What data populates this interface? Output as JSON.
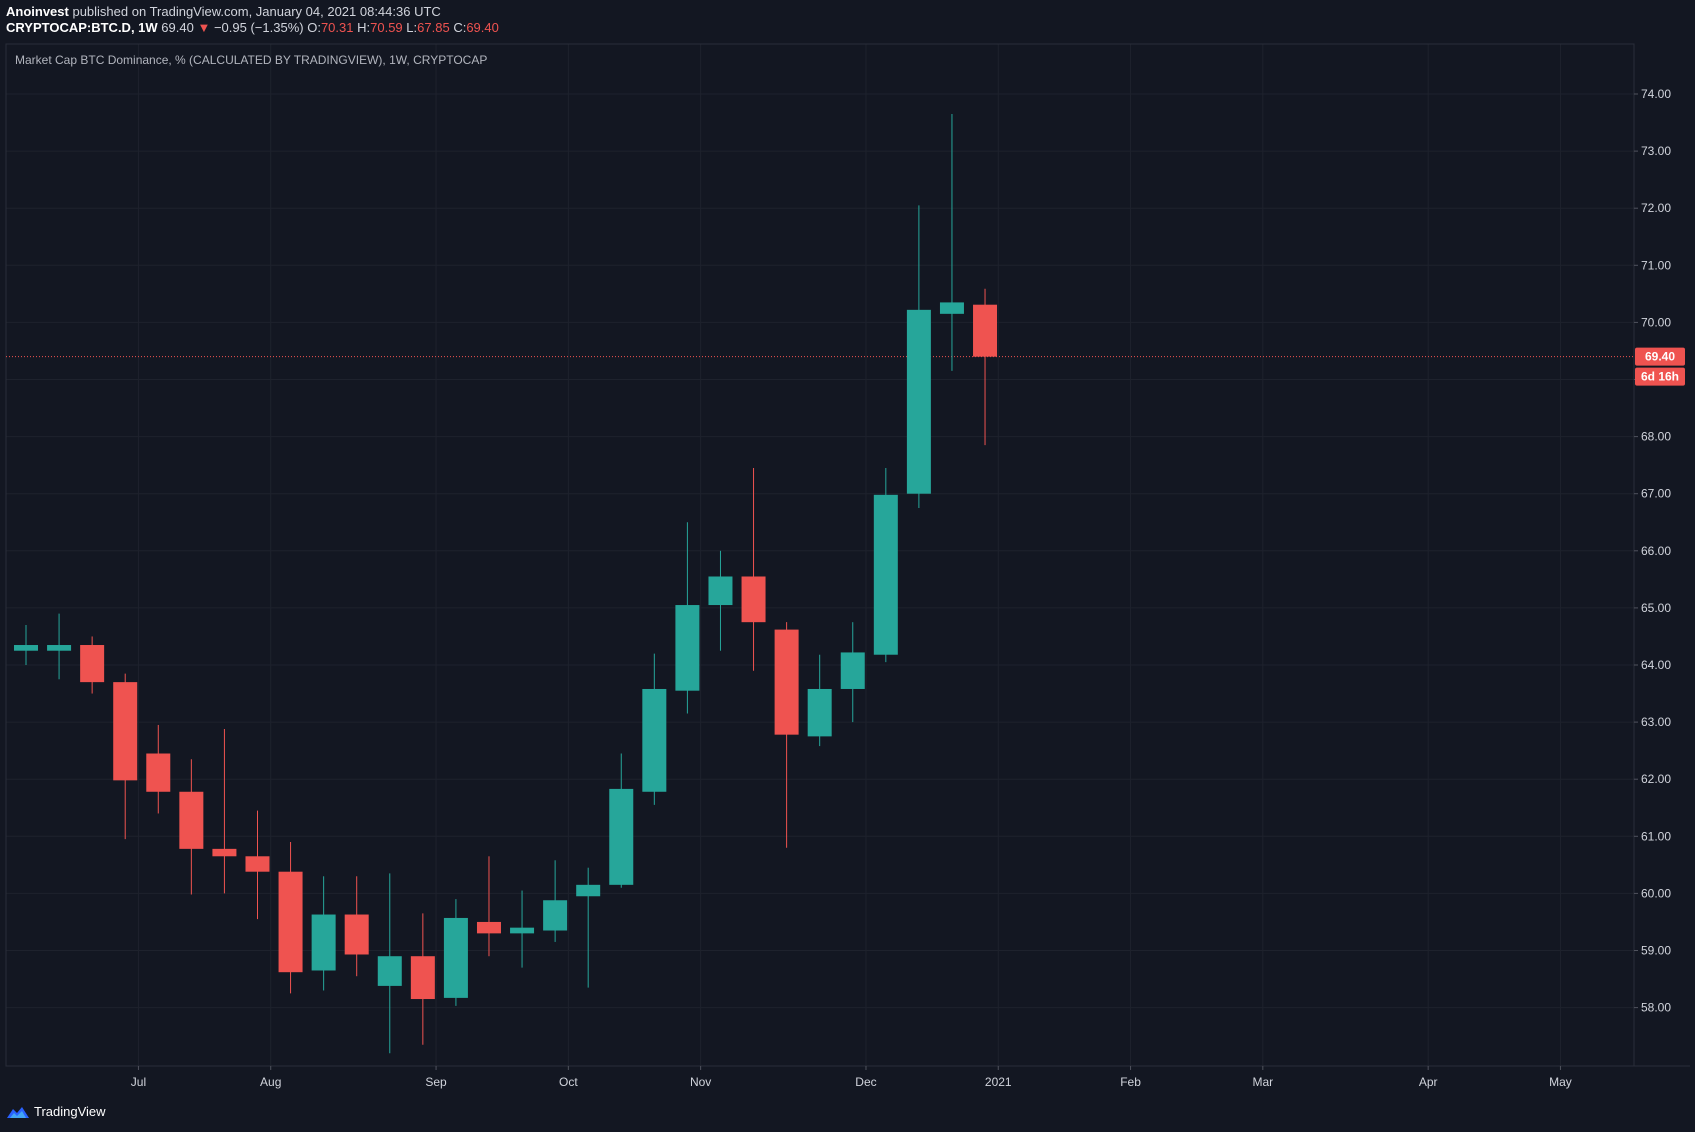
{
  "header": {
    "author": "Anoinvest",
    "published": "published on TradingView.com, January 04, 2021 08:44:36 UTC",
    "symbol": "CRYPTOCAP:BTC.D, 1W",
    "last": "69.40",
    "change_arrow": "▼",
    "change": "−0.95 (−1.35%)",
    "o_label": "O:",
    "o_value": "70.31",
    "h_label": "H:",
    "h_value": "70.59",
    "l_label": "L:",
    "l_value": "67.85",
    "c_label": "C:",
    "c_value": "69.40"
  },
  "legend_title": "Market Cap BTC Dominance, % (CALCULATED BY TRADINGVIEW), 1W, CRYPTOCAP",
  "price_label": "69.40",
  "countdown_label": "6d 16h",
  "footer": {
    "brand": "TradingView",
    "logo_icon": "tradingview-logo-icon"
  },
  "colors": {
    "background": "#131722",
    "up": "#26a69a",
    "down": "#ef5350",
    "grid": "#1e222d",
    "text": "#d1d4dc"
  },
  "chart_data": {
    "type": "candlestick",
    "interval": "1W",
    "ylim": [
      57.1,
      74.8
    ],
    "y_ticks": [
      "58.00",
      "59.00",
      "60.00",
      "61.00",
      "62.00",
      "63.00",
      "64.00",
      "65.00",
      "66.00",
      "67.00",
      "68.00",
      "69.00",
      "70.00",
      "71.00",
      "72.00",
      "73.00",
      "74.00"
    ],
    "x_ticks": [
      {
        "label": "Jul",
        "index": 3.4
      },
      {
        "label": "Aug",
        "index": 7.4
      },
      {
        "label": "Sep",
        "index": 12.4
      },
      {
        "label": "Oct",
        "index": 16.4
      },
      {
        "label": "Nov",
        "index": 20.4
      },
      {
        "label": "Dec",
        "index": 25.4
      },
      {
        "label": "2021",
        "index": 29.4
      },
      {
        "label": "Feb",
        "index": 33.4
      },
      {
        "label": "Mar",
        "index": 37.4
      },
      {
        "label": "Apr",
        "index": 42.4
      },
      {
        "label": "May",
        "index": 46.4
      }
    ],
    "candles": [
      {
        "o": 64.25,
        "h": 64.7,
        "l": 64.0,
        "c": 64.35
      },
      {
        "o": 64.25,
        "h": 64.9,
        "l": 63.75,
        "c": 64.35
      },
      {
        "o": 64.35,
        "h": 64.5,
        "l": 63.5,
        "c": 63.7
      },
      {
        "o": 63.7,
        "h": 63.85,
        "l": 60.95,
        "c": 61.98
      },
      {
        "o": 62.45,
        "h": 62.95,
        "l": 61.4,
        "c": 61.78
      },
      {
        "o": 61.78,
        "h": 62.35,
        "l": 59.98,
        "c": 60.78
      },
      {
        "o": 60.78,
        "h": 62.88,
        "l": 60.0,
        "c": 60.65
      },
      {
        "o": 60.65,
        "h": 61.45,
        "l": 59.55,
        "c": 60.38
      },
      {
        "o": 60.38,
        "h": 60.9,
        "l": 58.25,
        "c": 58.62
      },
      {
        "o": 58.65,
        "h": 60.3,
        "l": 58.3,
        "c": 59.63
      },
      {
        "o": 59.63,
        "h": 60.3,
        "l": 58.55,
        "c": 58.93
      },
      {
        "o": 58.38,
        "h": 60.35,
        "l": 57.2,
        "c": 58.9
      },
      {
        "o": 58.9,
        "h": 59.65,
        "l": 57.35,
        "c": 58.15
      },
      {
        "o": 58.17,
        "h": 59.9,
        "l": 58.03,
        "c": 59.57
      },
      {
        "o": 59.5,
        "h": 60.65,
        "l": 58.9,
        "c": 59.3
      },
      {
        "o": 59.3,
        "h": 60.05,
        "l": 58.7,
        "c": 59.4
      },
      {
        "o": 59.35,
        "h": 60.58,
        "l": 59.15,
        "c": 59.88
      },
      {
        "o": 59.95,
        "h": 60.45,
        "l": 58.35,
        "c": 60.15
      },
      {
        "o": 60.15,
        "h": 62.45,
        "l": 60.1,
        "c": 61.83
      },
      {
        "o": 61.78,
        "h": 64.2,
        "l": 61.55,
        "c": 63.58
      },
      {
        "o": 63.55,
        "h": 66.5,
        "l": 63.15,
        "c": 65.05
      },
      {
        "o": 65.05,
        "h": 66.0,
        "l": 64.25,
        "c": 65.55
      },
      {
        "o": 65.55,
        "h": 67.45,
        "l": 63.9,
        "c": 64.75
      },
      {
        "o": 64.62,
        "h": 64.75,
        "l": 60.8,
        "c": 62.78
      },
      {
        "o": 62.75,
        "h": 64.18,
        "l": 62.58,
        "c": 63.58
      },
      {
        "o": 63.58,
        "h": 64.75,
        "l": 63.0,
        "c": 64.22
      },
      {
        "o": 64.18,
        "h": 67.45,
        "l": 64.05,
        "c": 66.98
      },
      {
        "o": 67.0,
        "h": 72.05,
        "l": 66.75,
        "c": 70.22
      },
      {
        "o": 70.15,
        "h": 73.65,
        "l": 69.15,
        "c": 70.35
      },
      {
        "o": 70.31,
        "h": 70.59,
        "l": 67.85,
        "c": 69.4
      }
    ],
    "last_price": 69.4,
    "countdown": "6d 16h"
  }
}
